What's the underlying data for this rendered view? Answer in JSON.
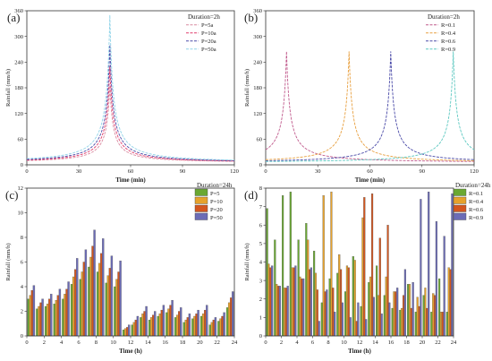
{
  "chart_data": [
    {
      "id": "a",
      "panel_label": "(a)",
      "type": "line",
      "xlabel": "Time (min)",
      "ylabel": "Rainfall (mm/h)",
      "xlim": [
        0,
        120
      ],
      "ylim": [
        0,
        360
      ],
      "xticks": [
        0,
        30,
        60,
        90,
        120
      ],
      "yticks": [
        0,
        60,
        120,
        180,
        240,
        300,
        360
      ],
      "legend_title": "Duration=2h",
      "legend_position": "top-right",
      "peak_position": 0.4,
      "series": [
        {
          "name": "P=5a",
          "color": "#d98aa0",
          "peak": 185
        },
        {
          "name": "P=10a",
          "color": "#e03a6a",
          "peak": 230
        },
        {
          "name": "P=20a",
          "color": "#4a4aa8",
          "peak": 280
        },
        {
          "name": "P=50a",
          "color": "#8fd3e8",
          "peak": 350
        }
      ]
    },
    {
      "id": "b",
      "panel_label": "(b)",
      "type": "line",
      "xlabel": "Time (min)",
      "ylabel": "Rainfall (mm/h)",
      "xlim": [
        0,
        120
      ],
      "ylim": [
        0,
        360
      ],
      "xticks": [
        0,
        30,
        60,
        90,
        120
      ],
      "yticks": [
        0,
        60,
        120,
        180,
        240,
        300,
        360
      ],
      "legend_title": "Duration=2h",
      "legend_position": "top-right",
      "peak_value": 265,
      "series": [
        {
          "name": "R=0.1",
          "color": "#c05a8c",
          "peak_position": 0.1
        },
        {
          "name": "R=0.4",
          "color": "#e8a040",
          "peak_position": 0.4
        },
        {
          "name": "R=0.6",
          "color": "#4a4aa8",
          "peak_position": 0.6
        },
        {
          "name": "R=0.9",
          "color": "#5cc8c0",
          "peak_position": 0.9
        }
      ]
    },
    {
      "id": "c",
      "panel_label": "(c)",
      "type": "bar",
      "xlabel": "Time (h)",
      "ylabel": "Rainfall (mm/h)",
      "xlim": [
        0,
        24
      ],
      "ylim": [
        0,
        12
      ],
      "xticks": [
        0,
        2,
        4,
        6,
        8,
        10,
        12,
        14,
        16,
        18,
        20,
        22,
        24
      ],
      "yticks": [
        0,
        2,
        4,
        6,
        8,
        10,
        12
      ],
      "legend_title": "Duration=24h",
      "legend_position": "top-right",
      "categories": [
        1,
        2,
        3,
        4,
        5,
        6,
        7,
        8,
        9,
        10,
        11,
        12,
        13,
        14,
        15,
        16,
        17,
        18,
        19,
        20,
        21,
        22,
        23,
        24
      ],
      "series": [
        {
          "name": "P=5",
          "color": "#6aa832",
          "values": [
            3.0,
            2.2,
            2.4,
            2.6,
            3.0,
            4.2,
            4.6,
            5.6,
            5.2,
            4.3,
            4.0,
            0.5,
            0.9,
            1.5,
            1.3,
            1.6,
            1.9,
            1.5,
            1.1,
            1.4,
            1.6,
            0.9,
            1.2,
            2.3
          ]
        },
        {
          "name": "P=10",
          "color": "#e6a22c",
          "values": [
            3.3,
            2.4,
            2.6,
            2.9,
            3.4,
            4.8,
            5.2,
            6.4,
            5.9,
            4.9,
            4.6,
            0.6,
            1.1,
            1.8,
            1.5,
            1.8,
            2.2,
            1.7,
            1.3,
            1.6,
            1.8,
            1.1,
            1.4,
            2.7
          ]
        },
        {
          "name": "P=20",
          "color": "#d4561e",
          "values": [
            3.7,
            2.7,
            3.0,
            3.3,
            3.8,
            5.4,
            6.0,
            7.3,
            6.7,
            5.5,
            5.2,
            0.7,
            1.3,
            2.0,
            1.7,
            2.1,
            2.5,
            2.0,
            1.5,
            1.8,
            2.1,
            1.3,
            1.6,
            3.1
          ]
        },
        {
          "name": "P=50",
          "color": "#6c6cb6",
          "values": [
            4.1,
            3.0,
            3.4,
            3.8,
            4.4,
            6.3,
            7.0,
            8.6,
            7.9,
            6.5,
            6.1,
            0.9,
            1.6,
            2.4,
            2.0,
            2.5,
            2.9,
            2.3,
            1.8,
            2.1,
            2.5,
            1.5,
            1.9,
            3.6
          ]
        }
      ]
    },
    {
      "id": "d",
      "panel_label": "(d)",
      "type": "bar",
      "xlabel": "Time (h)",
      "ylabel": "Rainfall (mm/h)",
      "xlim": [
        0,
        24
      ],
      "ylim": [
        0,
        8
      ],
      "xticks": [
        0,
        2,
        4,
        6,
        8,
        10,
        12,
        14,
        16,
        18,
        20,
        22,
        24
      ],
      "yticks": [
        0,
        1,
        2,
        3,
        4,
        5,
        6,
        7,
        8
      ],
      "legend_title": "Duration=24h",
      "legend_position": "top-right",
      "categories": [
        1,
        2,
        3,
        4,
        5,
        6,
        7,
        8,
        9,
        10,
        11,
        12,
        13,
        14,
        15,
        16,
        17,
        18,
        19,
        20,
        21,
        22,
        23,
        24
      ],
      "series": [
        {
          "name": "R=0.1",
          "color": "#6aa832",
          "values": [
            6.9,
            5.2,
            7.6,
            7.8,
            5.2,
            6.1,
            4.6,
            1.8,
            3.1,
            3.4,
            2.4,
            4.3,
            1.6,
            2.9,
            3.8,
            2.2,
            1.5,
            1.4,
            2.8,
            1.3,
            2.2,
            1.3,
            3.1,
            1.3
          ]
        },
        {
          "name": "R=0.4",
          "color": "#e6a22c",
          "values": [
            3.9,
            2.8,
            2.6,
            3.7,
            3.2,
            5.2,
            3.4,
            7.6,
            7.8,
            4.4,
            3.8,
            4.1,
            6.4,
            3.2,
            2.2,
            3.2,
            2.4,
            1.5,
            2.8,
            2.1,
            2.6,
            2.3,
            1.3,
            3.7
          ]
        },
        {
          "name": "R=0.6",
          "color": "#d4561e",
          "values": [
            3.7,
            2.7,
            2.6,
            3.7,
            3.1,
            3.6,
            2.5,
            2.4,
            2.6,
            3.6,
            3.7,
            0.8,
            7.5,
            7.7,
            5.3,
            6.0,
            2.4,
            2.2,
            1.5,
            1.6,
            1.5,
            2.2,
            1.3,
            3.6
          ]
        },
        {
          "name": "R=0.9",
          "color": "#6c6cb6",
          "values": [
            3.8,
            2.7,
            2.7,
            3.8,
            3.1,
            3.7,
            0.8,
            2.5,
            1.3,
            1.8,
            1.0,
            1.8,
            0.9,
            2.1,
            1.2,
            1.8,
            2.6,
            3.6,
            2.9,
            7.4,
            7.8,
            6.2,
            5.4,
            7.7
          ]
        }
      ]
    }
  ]
}
